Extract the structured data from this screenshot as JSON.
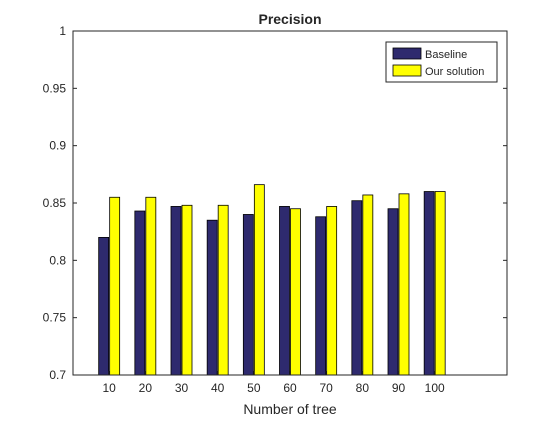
{
  "chart_data": {
    "type": "bar",
    "title": "Precision",
    "xlabel": "Number of tree",
    "ylabel": "",
    "categories": [
      "10",
      "20",
      "30",
      "40",
      "50",
      "60",
      "70",
      "80",
      "90",
      "100"
    ],
    "series": [
      {
        "name": "Baseline",
        "color": "#2E2A6E",
        "values": [
          0.82,
          0.843,
          0.847,
          0.835,
          0.84,
          0.847,
          0.838,
          0.852,
          0.845,
          0.86
        ]
      },
      {
        "name": "Our solution",
        "color": "#FFFF00",
        "values": [
          0.855,
          0.855,
          0.848,
          0.848,
          0.866,
          0.845,
          0.847,
          0.857,
          0.858,
          0.86
        ]
      }
    ],
    "ylim": [
      0.7,
      1.0
    ],
    "yticks": [
      "0.7",
      "0.75",
      "0.8",
      "0.85",
      "0.9",
      "0.95",
      "1"
    ],
    "xlim": [
      0,
      12
    ],
    "grid": false,
    "legend_position": "top-right"
  }
}
